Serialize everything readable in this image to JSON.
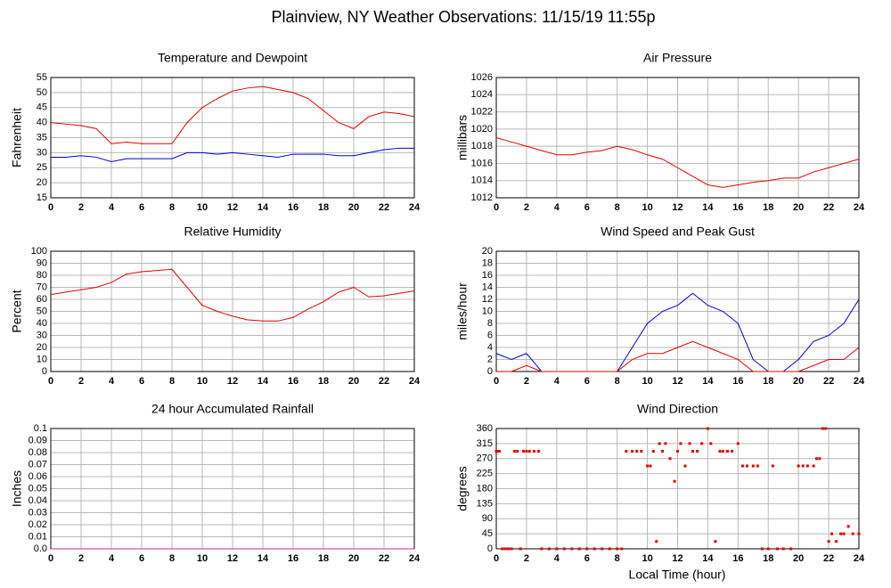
{
  "title": "Plainview, NY Weather Observations: 11/15/19 11:55p",
  "x_label": "Local Time (hour)",
  "chart_data": [
    {
      "type": "line",
      "title": "Temperature and Dewpoint",
      "y_label": "Fahrenheit",
      "x": [
        0,
        1,
        2,
        3,
        4,
        5,
        6,
        7,
        8,
        9,
        10,
        11,
        12,
        13,
        14,
        15,
        16,
        17,
        18,
        19,
        20,
        21,
        22,
        23,
        24
      ],
      "series": [
        {
          "color": "#e00000",
          "values": [
            40,
            39.5,
            39,
            38,
            33,
            33.5,
            33,
            33,
            33,
            40,
            45,
            48,
            50.5,
            51.5,
            52,
            51,
            50,
            48,
            44,
            40,
            38,
            42,
            43.5,
            43,
            42
          ]
        },
        {
          "color": "#0000d0",
          "values": [
            28.5,
            28.5,
            29,
            28.5,
            27,
            28,
            28,
            28,
            28,
            30,
            30,
            29.5,
            30,
            29.5,
            29,
            28.5,
            29.5,
            29.5,
            29.5,
            29,
            29,
            30,
            31,
            31.5,
            31.5
          ]
        }
      ],
      "xlim": [
        0,
        24
      ],
      "ylim": [
        15,
        55
      ],
      "xticks": [
        0,
        2,
        4,
        6,
        8,
        10,
        12,
        14,
        16,
        18,
        20,
        22,
        24
      ],
      "yticks": [
        15,
        20,
        25,
        30,
        35,
        40,
        45,
        50,
        55
      ],
      "grid": true
    },
    {
      "type": "line",
      "title": "Air Pressure",
      "y_label": "millibars",
      "x": [
        0,
        1,
        2,
        3,
        4,
        5,
        6,
        7,
        8,
        9,
        10,
        11,
        12,
        13,
        14,
        15,
        16,
        17,
        18,
        19,
        20,
        21,
        22,
        23,
        24
      ],
      "series": [
        {
          "color": "#e00000",
          "values": [
            1019,
            1018.5,
            1018,
            1017.5,
            1017,
            1017,
            1017.3,
            1017.5,
            1018,
            1017.6,
            1017,
            1016.5,
            1015.5,
            1014.5,
            1013.5,
            1013.2,
            1013.5,
            1013.8,
            1014,
            1014.3,
            1014.3,
            1015,
            1015.5,
            1016,
            1016.5
          ]
        }
      ],
      "xlim": [
        0,
        24
      ],
      "ylim": [
        1012,
        1026
      ],
      "xticks": [
        0,
        2,
        4,
        6,
        8,
        10,
        12,
        14,
        16,
        18,
        20,
        22,
        24
      ],
      "yticks": [
        1012,
        1014,
        1016,
        1018,
        1020,
        1022,
        1024,
        1026
      ],
      "grid": true
    },
    {
      "type": "line",
      "title": "Relative Humidity",
      "y_label": "Percent",
      "x": [
        0,
        1,
        2,
        3,
        4,
        5,
        6,
        7,
        8,
        9,
        10,
        11,
        12,
        13,
        14,
        15,
        16,
        17,
        18,
        19,
        20,
        21,
        22,
        23,
        24
      ],
      "series": [
        {
          "color": "#e00000",
          "values": [
            64,
            66,
            68,
            70,
            74,
            81,
            83,
            84,
            85,
            70,
            55,
            50,
            46,
            43,
            42,
            42,
            45,
            52,
            58,
            66,
            70,
            62,
            63,
            65,
            67
          ]
        }
      ],
      "xlim": [
        0,
        24
      ],
      "ylim": [
        0,
        100
      ],
      "xticks": [
        0,
        2,
        4,
        6,
        8,
        10,
        12,
        14,
        16,
        18,
        20,
        22,
        24
      ],
      "yticks": [
        0,
        10,
        20,
        30,
        40,
        50,
        60,
        70,
        80,
        90,
        100
      ],
      "grid": true
    },
    {
      "type": "line",
      "title": "Wind Speed and Peak Gust",
      "y_label": "miles/hour",
      "x": [
        0,
        1,
        2,
        3,
        4,
        5,
        6,
        7,
        8,
        9,
        10,
        11,
        12,
        13,
        14,
        15,
        16,
        17,
        18,
        19,
        20,
        21,
        22,
        23,
        24
      ],
      "series": [
        {
          "color": "#0000d0",
          "values": [
            3,
            2,
            3,
            0,
            0,
            0,
            0,
            0,
            0,
            4,
            8,
            10,
            11,
            13,
            11,
            10,
            8,
            2,
            0,
            0,
            2,
            5,
            6,
            8,
            12
          ]
        },
        {
          "color": "#e00000",
          "values": [
            0,
            0,
            1,
            0,
            0,
            0,
            0,
            0,
            0,
            2,
            3,
            3,
            4,
            5,
            4,
            3,
            2,
            0,
            0,
            0,
            0,
            1,
            2,
            2,
            4
          ]
        }
      ],
      "xlim": [
        0,
        24
      ],
      "ylim": [
        0,
        20
      ],
      "xticks": [
        0,
        2,
        4,
        6,
        8,
        10,
        12,
        14,
        16,
        18,
        20,
        22,
        24
      ],
      "yticks": [
        0,
        2,
        4,
        6,
        8,
        10,
        12,
        14,
        16,
        18,
        20
      ],
      "grid": true
    },
    {
      "type": "line",
      "title": "24 hour Accumulated Rainfall",
      "y_label": "Inches",
      "x": [
        0,
        1,
        2,
        3,
        4,
        5,
        6,
        7,
        8,
        9,
        10,
        11,
        12,
        13,
        14,
        15,
        16,
        17,
        18,
        19,
        20,
        21,
        22,
        23,
        24
      ],
      "series": [
        {
          "color": "#c03090",
          "values": [
            0,
            0,
            0,
            0,
            0,
            0,
            0,
            0,
            0,
            0,
            0,
            0,
            0,
            0,
            0,
            0,
            0,
            0,
            0,
            0,
            0,
            0,
            0,
            0,
            0
          ]
        }
      ],
      "xlim": [
        0,
        24
      ],
      "ylim": [
        0,
        0.1
      ],
      "xticks": [
        0,
        2,
        4,
        6,
        8,
        10,
        12,
        14,
        16,
        18,
        20,
        22,
        24
      ],
      "yticks": [
        {
          "value": 0,
          "label": "0.0"
        },
        0.01,
        0.02,
        0.03,
        0.04,
        0.05,
        0.06,
        0.07,
        0.08,
        0.09,
        0.1
      ],
      "grid": true
    },
    {
      "type": "scatter",
      "title": "Wind Direction",
      "y_label": "degrees",
      "x": [
        0,
        0.1,
        0.2,
        0.4,
        0.6,
        0.8,
        1.0,
        1.2,
        1.4,
        1.6,
        1.8,
        2.0,
        2.2,
        2.5,
        2.8,
        3.0,
        3.5,
        4,
        4.5,
        5,
        5.5,
        6,
        6.5,
        7,
        7.5,
        8,
        8.3,
        8.6,
        9,
        9.3,
        9.6,
        10,
        10.2,
        10.4,
        10.6,
        10.8,
        11,
        11.2,
        11.5,
        11.8,
        12,
        12.2,
        12.5,
        12.8,
        13,
        13.3,
        13.6,
        14,
        14.2,
        14.5,
        14.8,
        15,
        15.3,
        15.6,
        16,
        16.3,
        16.6,
        17,
        17.3,
        17.6,
        18,
        18.3,
        18.6,
        19,
        19.5,
        20,
        20.3,
        20.6,
        21,
        21.2,
        21.4,
        21.6,
        21.8,
        22,
        22.2,
        22.5,
        22.8,
        23,
        23.3,
        23.6,
        24
      ],
      "series": [
        {
          "color": "#e00000",
          "values": [
            292,
            292,
            292,
            0,
            0,
            0,
            0,
            292,
            292,
            0,
            292,
            292,
            292,
            292,
            292,
            0,
            0,
            0,
            0,
            0,
            0,
            0,
            0,
            0,
            0,
            0,
            0,
            292,
            292,
            292,
            292,
            248,
            248,
            292,
            22,
            315,
            292,
            315,
            270,
            202,
            292,
            315,
            248,
            315,
            292,
            292,
            315,
            360,
            315,
            22,
            292,
            292,
            292,
            292,
            315,
            248,
            248,
            248,
            248,
            0,
            0,
            248,
            0,
            0,
            0,
            248,
            248,
            248,
            248,
            270,
            270,
            360,
            360,
            22,
            45,
            22,
            45,
            45,
            67,
            45,
            45
          ]
        }
      ],
      "xlim": [
        0,
        24
      ],
      "ylim": [
        0,
        360
      ],
      "xticks": [
        0,
        2,
        4,
        6,
        8,
        10,
        12,
        14,
        16,
        18,
        20,
        22,
        24
      ],
      "yticks": [
        0,
        45,
        90,
        135,
        180,
        225,
        270,
        315,
        360
      ],
      "grid": true
    }
  ]
}
